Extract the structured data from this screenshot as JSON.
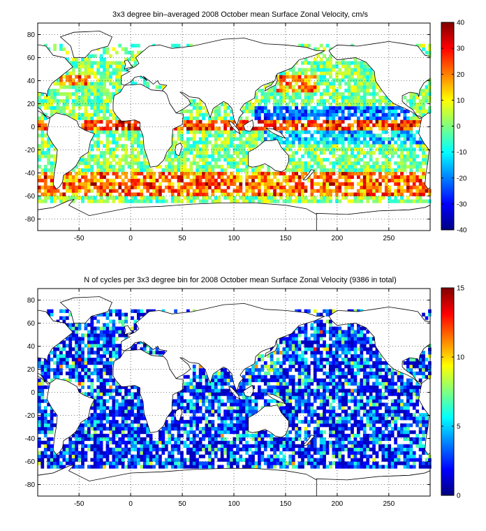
{
  "chart_data": [
    {
      "type": "heatmap",
      "title": "3x3 degree bin–averaged 2008 October mean Surface Zonal Velocity, cm/s",
      "xlabel": "",
      "ylabel": "",
      "xlim": [
        -90,
        290
      ],
      "ylim": [
        -90,
        90
      ],
      "x_ticks": [
        -50,
        0,
        50,
        100,
        150,
        200,
        250
      ],
      "y_ticks": [
        80,
        60,
        40,
        20,
        0,
        -20,
        -40,
        -60,
        -80
      ],
      "grid": "dotted",
      "colormap": "jet",
      "colorbar": {
        "min": -40,
        "max": 40,
        "ticks": [
          40,
          30,
          20,
          10,
          0,
          -10,
          -20,
          -30,
          -40
        ]
      },
      "bin_size_deg": 3,
      "variable": "velocity"
    },
    {
      "type": "heatmap",
      "title": "N of cycles per 3x3 degree bin for 2008 October mean Surface Zonal Velocity (9386 in total)",
      "xlabel": "",
      "ylabel": "",
      "xlim": [
        -90,
        290
      ],
      "ylim": [
        -90,
        90
      ],
      "x_ticks": [
        -50,
        0,
        50,
        100,
        150,
        200,
        250
      ],
      "y_ticks": [
        80,
        60,
        40,
        20,
        0,
        -20,
        -40,
        -60,
        -80
      ],
      "grid": "dotted",
      "colormap": "jet",
      "colorbar": {
        "min": 0,
        "max": 15,
        "ticks": [
          15,
          10,
          5,
          0
        ]
      },
      "bin_size_deg": 3,
      "variable": "count"
    }
  ]
}
